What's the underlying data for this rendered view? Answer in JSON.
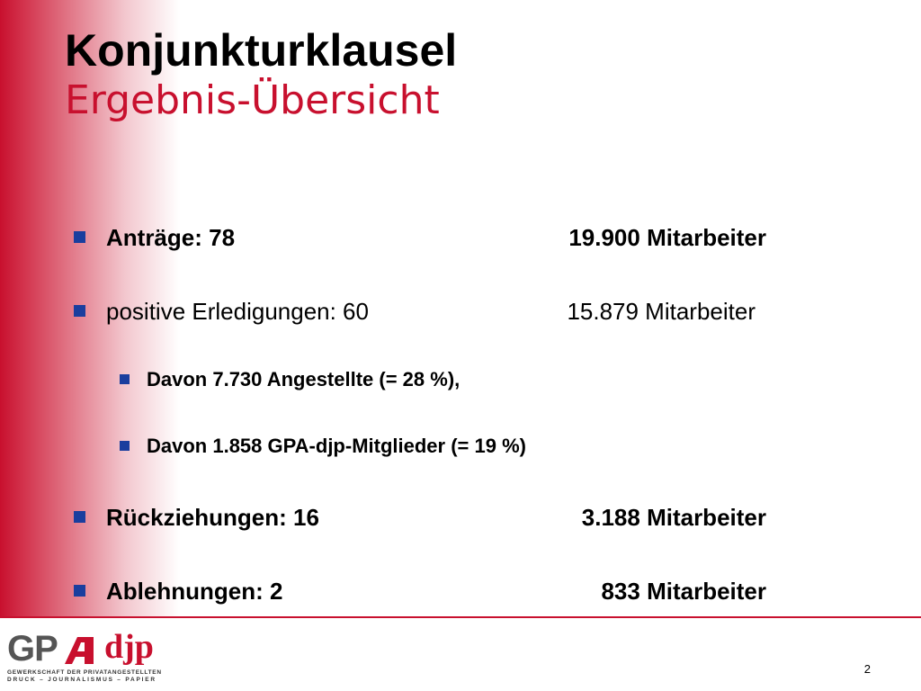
{
  "slide": {
    "title": "Konjunkturklausel",
    "subtitle": "Ergebnis-Übersicht",
    "items": [
      {
        "label": "Anträge: 78",
        "value": "19.900 Mitarbeiter"
      },
      {
        "label": "positive Erledigungen: 60",
        "value": "15.879 Mitarbeiter"
      },
      {
        "label": "Davon 7.730 Angestellte (= 28 %),"
      },
      {
        "label": "Davon 1.858 GPA-djp-Mitglieder (= 19 %)"
      },
      {
        "label": "Rückziehungen: 16",
        "value": "3.188 Mitarbeiter"
      },
      {
        "label": "Ablehnungen: 2",
        "value": "833 Mitarbeiter"
      }
    ],
    "page_number": "2"
  },
  "logo": {
    "gp": "GP",
    "djp": "djp",
    "line1": "GEWERKSCHAFT DER PRIVATANGESTELLTEN",
    "line2": "DRUCK – JOURNALISMUS – PAPIER"
  },
  "colors": {
    "accent_red": "#c8102e",
    "bullet_blue": "#1a3e9e"
  }
}
